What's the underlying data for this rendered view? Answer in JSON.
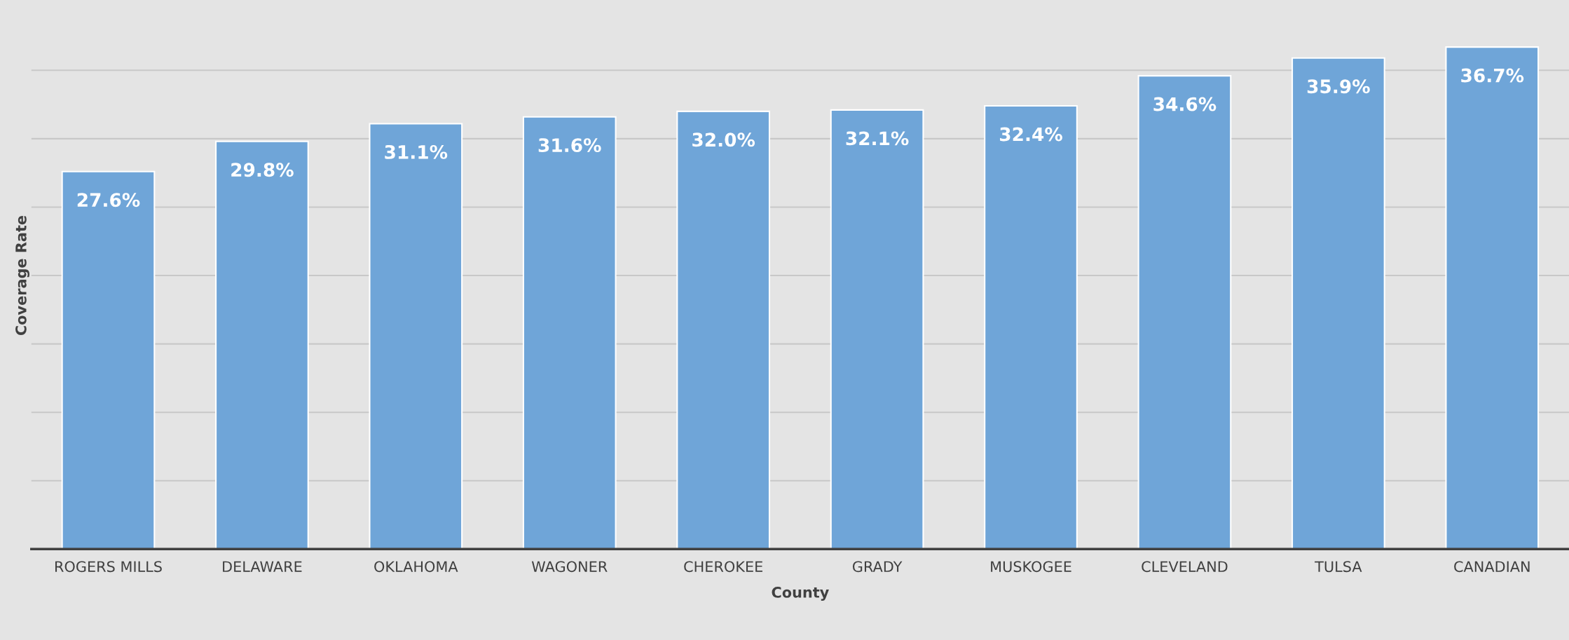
{
  "chart_data": {
    "type": "bar",
    "xlabel": "County",
    "ylabel": "Coverage Rate",
    "categories": [
      "ROGERS MILLS",
      "DELAWARE",
      "OKLAHOMA",
      "WAGONER",
      "CHEROKEE",
      "GRADY",
      "MUSKOGEE",
      "CLEVELAND",
      "TULSA",
      "CANADIAN"
    ],
    "values": [
      27.6,
      29.8,
      31.1,
      31.6,
      32.0,
      32.1,
      32.4,
      34.6,
      35.9,
      36.7
    ],
    "value_labels": [
      "27.6%",
      "29.8%",
      "31.1%",
      "31.6%",
      "32.0%",
      "32.1%",
      "32.4%",
      "34.6%",
      "35.9%",
      "36.7%"
    ],
    "color": "#6fa5d8",
    "ylim": [
      0,
      40
    ],
    "yticks": [
      {
        "value": 5,
        "label": null
      },
      {
        "value": 10,
        "label": null
      },
      {
        "value": 15,
        "label": null
      },
      {
        "value": 20,
        "label": null
      },
      {
        "value": 25,
        "label": null
      },
      {
        "value": 30,
        "label": null
      },
      {
        "value": 35,
        "label": null
      }
    ],
    "tick_labels": "x",
    "grid": "y",
    "legend": false
  }
}
